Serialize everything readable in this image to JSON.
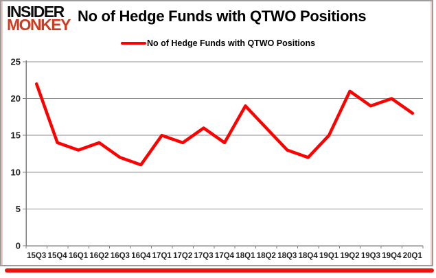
{
  "logo": {
    "line1": "INSIDER",
    "line2": "MONKEY"
  },
  "title": "No of Hedge Funds with QTWO Positions",
  "legend": {
    "label": "No of Hedge Funds with QTWO Positions"
  },
  "colors": {
    "line": "#ff0000",
    "logo_black": "#0c0c0c",
    "logo_red": "#ce3b20",
    "grid": "#8f8f8f",
    "axis": "#7f7f7f",
    "axis_text": "#1f1f1f",
    "frame_border": "#9c9c9c",
    "frame_accent": "#f3cdc8",
    "bottom_bar": "#ea150e"
  },
  "chart_data": {
    "type": "line",
    "title": "No of Hedge Funds with QTWO Positions",
    "categories": [
      "15Q3",
      "15Q4",
      "16Q1",
      "16Q2",
      "16Q3",
      "16Q4",
      "17Q1",
      "17Q2",
      "17Q3",
      "17Q4",
      "18Q1",
      "18Q2",
      "18Q3",
      "18Q4",
      "19Q1",
      "19Q2",
      "19Q3",
      "19Q4",
      "20Q1"
    ],
    "series": [
      {
        "name": "No of Hedge Funds with QTWO Positions",
        "values": [
          22,
          14,
          13,
          14,
          12,
          11,
          15,
          14,
          16,
          14,
          19,
          16,
          13,
          12,
          15,
          21,
          19,
          20,
          18
        ]
      }
    ],
    "xlabel": "",
    "ylabel": "",
    "ylim": [
      0,
      25
    ],
    "yticks": [
      0,
      5,
      10,
      15,
      20,
      25
    ],
    "grid": true,
    "legend_position": "top"
  }
}
